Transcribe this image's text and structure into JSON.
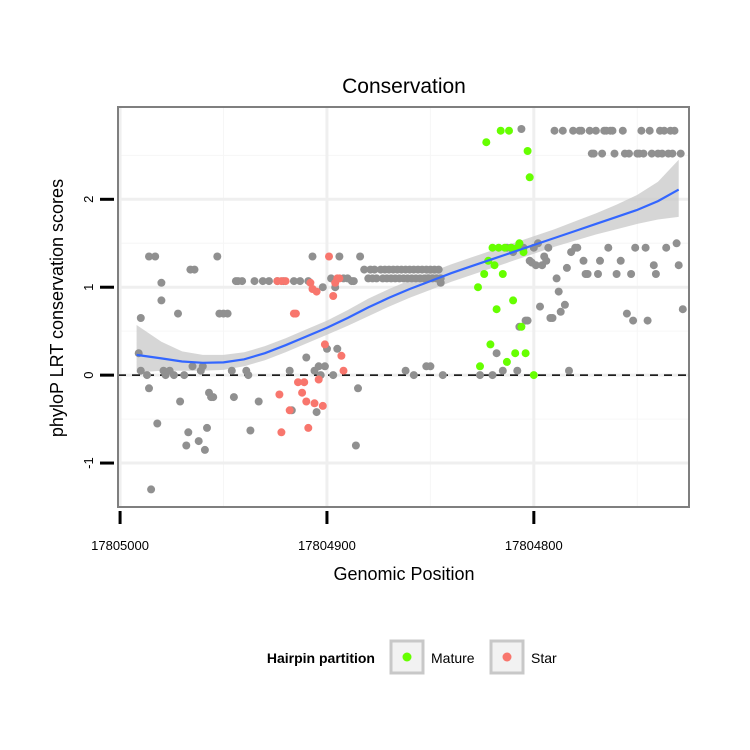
{
  "chart_data": {
    "type": "scatter",
    "title": "Conservation",
    "xlabel": "Genomic Position",
    "ylabel": "phyloP LRT conservation scores",
    "xlim": [
      17805001,
      17804725
    ],
    "x_reversed": true,
    "ylim": [
      -1.5,
      3.05
    ],
    "x_ticks": [
      17805000,
      17804900,
      17804800
    ],
    "x_tick_labels": [
      "17805000",
      "17804900",
      "17804800"
    ],
    "y_ticks": [
      -1,
      0,
      1,
      2
    ],
    "y_tick_labels": [
      "-1",
      "0",
      "1",
      "2"
    ],
    "x_minor_gridlines": [
      17804950,
      17804850,
      17804750
    ],
    "y_minor_gridlines": [
      -0.5,
      0.5,
      1.5,
      2.5
    ],
    "reference_line": {
      "y": 0,
      "style": "dashed"
    },
    "grid": true,
    "legend": {
      "title": "Hairpin partition",
      "position": "bottom",
      "entries": [
        {
          "label": "Mature",
          "color": "#66ff00"
        },
        {
          "label": "Star",
          "color": "#f8766d"
        }
      ]
    },
    "colors": {
      "other": "#909090",
      "mature": "#66ff00",
      "star": "#f8766d",
      "smooth_line": "#3366ff",
      "confidence_band": "#c8c8c8"
    },
    "series": [
      {
        "name": "Other",
        "color": "#909090",
        "points": [
          [
            17804991,
            0.25
          ],
          [
            17804990,
            0.65
          ],
          [
            17804990,
            0.05
          ],
          [
            17804987,
            0.0
          ],
          [
            17804986,
            1.35
          ],
          [
            17804986,
            -0.15
          ],
          [
            17804985,
            -1.3
          ],
          [
            17804983,
            1.35
          ],
          [
            17804982,
            -0.55
          ],
          [
            17804980,
            0.85
          ],
          [
            17804980,
            1.05
          ],
          [
            17804979,
            0.05
          ],
          [
            17804978,
            0.0
          ],
          [
            17804976,
            0.05
          ],
          [
            17804974,
            0.0
          ],
          [
            17804972,
            0.7
          ],
          [
            17804971,
            -0.3
          ],
          [
            17804969,
            0.0
          ],
          [
            17804968,
            -0.8
          ],
          [
            17804967,
            -0.65
          ],
          [
            17804966,
            1.2
          ],
          [
            17804965,
            0.1
          ],
          [
            17804964,
            1.2
          ],
          [
            17804962,
            -0.75
          ],
          [
            17804961,
            0.05
          ],
          [
            17804960,
            0.1
          ],
          [
            17804959,
            -0.85
          ],
          [
            17804958,
            -0.6
          ],
          [
            17804957,
            -0.2
          ],
          [
            17804956,
            -0.25
          ],
          [
            17804955,
            -0.25
          ],
          [
            17804953,
            1.35
          ],
          [
            17804952,
            0.7
          ],
          [
            17804950,
            0.7
          ],
          [
            17804948,
            0.7
          ],
          [
            17804946,
            0.05
          ],
          [
            17804945,
            -0.25
          ],
          [
            17804944,
            1.07
          ],
          [
            17804943,
            1.07
          ],
          [
            17804941,
            1.07
          ],
          [
            17804939,
            0.05
          ],
          [
            17804938,
            0.0
          ],
          [
            17804937,
            -0.63
          ],
          [
            17804935,
            1.07
          ],
          [
            17804933,
            -0.3
          ],
          [
            17804931,
            1.07
          ],
          [
            17804928,
            1.07
          ],
          [
            17804924,
            1.07
          ],
          [
            17804921,
            1.07
          ],
          [
            17804918,
            0.05
          ],
          [
            17804917,
            -0.4
          ],
          [
            17804916,
            1.07
          ],
          [
            17804913,
            1.07
          ],
          [
            17804910,
            0.2
          ],
          [
            17804909,
            1.07
          ],
          [
            17804907,
            1.35
          ],
          [
            17804906,
            0.05
          ],
          [
            17804905,
            -0.42
          ],
          [
            17804904,
            0.1
          ],
          [
            17804903,
            0.0
          ],
          [
            17804902,
            1.0
          ],
          [
            17804901,
            0.1
          ],
          [
            17804900,
            0.3
          ],
          [
            17804898,
            1.1
          ],
          [
            17804897,
            0.0
          ],
          [
            17804896,
            1.0
          ],
          [
            17804895,
            0.3
          ],
          [
            17804894,
            1.35
          ],
          [
            17804892,
            1.1
          ],
          [
            17804890,
            1.1
          ],
          [
            17804888,
            1.07
          ],
          [
            17804887,
            1.07
          ],
          [
            17804886,
            -0.8
          ],
          [
            17804885,
            -0.15
          ],
          [
            17804884,
            1.35
          ],
          [
            17804882,
            1.2
          ],
          [
            17804880,
            1.1
          ],
          [
            17804879,
            1.2
          ],
          [
            17804878,
            1.1
          ],
          [
            17804877,
            1.2
          ],
          [
            17804876,
            1.1
          ],
          [
            17804874,
            1.2
          ],
          [
            17804873,
            1.1
          ],
          [
            17804872,
            1.2
          ],
          [
            17804871,
            1.1
          ],
          [
            17804870,
            1.2
          ],
          [
            17804869,
            1.1
          ],
          [
            17804868,
            1.2
          ],
          [
            17804867,
            1.1
          ],
          [
            17804866,
            1.2
          ],
          [
            17804865,
            1.1
          ],
          [
            17804864,
            1.2
          ],
          [
            17804863,
            1.1
          ],
          [
            17804862,
            1.2
          ],
          [
            17804861,
            1.1
          ],
          [
            17804860,
            1.2
          ],
          [
            17804859,
            1.1
          ],
          [
            17804858,
            1.2
          ],
          [
            17804857,
            1.1
          ],
          [
            17804856,
            1.2
          ],
          [
            17804855,
            1.1
          ],
          [
            17804854,
            1.2
          ],
          [
            17804853,
            1.1
          ],
          [
            17804852,
            1.2
          ],
          [
            17804851,
            1.1
          ],
          [
            17804850,
            1.2
          ],
          [
            17804849,
            1.1
          ],
          [
            17804848,
            1.2
          ],
          [
            17804847,
            1.1
          ],
          [
            17804846,
            1.2
          ],
          [
            17804845,
            1.1
          ],
          [
            17804862,
            0.05
          ],
          [
            17804858,
            0.0
          ],
          [
            17804852,
            0.1
          ],
          [
            17804850,
            0.1
          ],
          [
            17804845,
            1.05
          ],
          [
            17804844,
            0.0
          ],
          [
            17804826,
            0.0
          ],
          [
            17804820,
            0.0
          ],
          [
            17804818,
            0.25
          ],
          [
            17804815,
            0.05
          ],
          [
            17804813,
            1.45
          ],
          [
            17804811,
            1.45
          ],
          [
            17804810,
            1.4
          ],
          [
            17804808,
            0.05
          ],
          [
            17804807,
            0.55
          ],
          [
            17804806,
            2.8
          ],
          [
            17804805,
            1.45
          ],
          [
            17804804,
            0.62
          ],
          [
            17804803,
            0.62
          ],
          [
            17804802,
            1.3
          ],
          [
            17804801,
            1.28
          ],
          [
            17804800,
            1.45
          ],
          [
            17804799,
            1.25
          ],
          [
            17804798,
            1.5
          ],
          [
            17804797,
            0.78
          ],
          [
            17804796,
            1.25
          ],
          [
            17804795,
            1.35
          ],
          [
            17804794,
            1.3
          ],
          [
            17804793,
            1.45
          ],
          [
            17804792,
            0.65
          ],
          [
            17804791,
            0.65
          ],
          [
            17804790,
            2.78
          ],
          [
            17804789,
            1.1
          ],
          [
            17804788,
            0.95
          ],
          [
            17804787,
            0.72
          ],
          [
            17804786,
            2.78
          ],
          [
            17804785,
            0.8
          ],
          [
            17804784,
            1.22
          ],
          [
            17804783,
            0.05
          ],
          [
            17804782,
            1.4
          ],
          [
            17804781,
            2.78
          ],
          [
            17804780,
            1.45
          ],
          [
            17804779,
            1.45
          ],
          [
            17804778,
            2.78
          ],
          [
            17804777,
            2.78
          ],
          [
            17804776,
            1.3
          ],
          [
            17804775,
            1.15
          ],
          [
            17804774,
            1.15
          ],
          [
            17804773,
            2.78
          ],
          [
            17804772,
            2.52
          ],
          [
            17804771,
            2.52
          ],
          [
            17804770,
            2.78
          ],
          [
            17804769,
            1.15
          ],
          [
            17804768,
            1.3
          ],
          [
            17804767,
            2.52
          ],
          [
            17804766,
            2.78
          ],
          [
            17804765,
            2.78
          ],
          [
            17804764,
            1.45
          ],
          [
            17804763,
            2.78
          ],
          [
            17804762,
            2.78
          ],
          [
            17804761,
            2.52
          ],
          [
            17804760,
            1.15
          ],
          [
            17804758,
            1.3
          ],
          [
            17804757,
            2.78
          ],
          [
            17804756,
            2.52
          ],
          [
            17804755,
            0.7
          ],
          [
            17804754,
            2.52
          ],
          [
            17804753,
            1.15
          ],
          [
            17804752,
            0.62
          ],
          [
            17804751,
            1.45
          ],
          [
            17804750,
            2.52
          ],
          [
            17804749,
            2.52
          ],
          [
            17804748,
            2.78
          ],
          [
            17804747,
            2.52
          ],
          [
            17804746,
            1.45
          ],
          [
            17804745,
            0.62
          ],
          [
            17804744,
            2.78
          ],
          [
            17804743,
            2.52
          ],
          [
            17804742,
            1.25
          ],
          [
            17804741,
            1.15
          ],
          [
            17804740,
            2.52
          ],
          [
            17804739,
            2.78
          ],
          [
            17804738,
            2.52
          ],
          [
            17804737,
            2.78
          ],
          [
            17804736,
            1.45
          ],
          [
            17804735,
            2.52
          ],
          [
            17804734,
            2.78
          ],
          [
            17804733,
            2.52
          ],
          [
            17804732,
            2.78
          ],
          [
            17804731,
            1.5
          ],
          [
            17804730,
            1.25
          ],
          [
            17804729,
            2.52
          ],
          [
            17804728,
            0.75
          ]
        ]
      },
      {
        "name": "Mature",
        "color": "#66ff00",
        "points": [
          [
            17804826,
            0.1
          ],
          [
            17804827,
            1.0
          ],
          [
            17804824,
            1.15
          ],
          [
            17804823,
            2.65
          ],
          [
            17804822,
            1.3
          ],
          [
            17804821,
            0.35
          ],
          [
            17804820,
            1.45
          ],
          [
            17804819,
            1.25
          ],
          [
            17804818,
            0.75
          ],
          [
            17804817,
            1.45
          ],
          [
            17804816,
            2.78
          ],
          [
            17804815,
            1.15
          ],
          [
            17804814,
            1.45
          ],
          [
            17804813,
            0.15
          ],
          [
            17804812,
            2.78
          ],
          [
            17804811,
            1.45
          ],
          [
            17804810,
            0.85
          ],
          [
            17804809,
            0.25
          ],
          [
            17804808,
            1.45
          ],
          [
            17804807,
            1.5
          ],
          [
            17804806,
            0.55
          ],
          [
            17804805,
            1.4
          ],
          [
            17804804,
            0.25
          ],
          [
            17804803,
            2.55
          ],
          [
            17804802,
            2.25
          ],
          [
            17804800,
            0.0
          ]
        ]
      },
      {
        "name": "Star",
        "color": "#f8766d",
        "points": [
          [
            17804924,
            1.07
          ],
          [
            17804922,
            1.07
          ],
          [
            17804920,
            1.07
          ],
          [
            17804923,
            -0.22
          ],
          [
            17804922,
            -0.65
          ],
          [
            17804918,
            -0.4
          ],
          [
            17804916,
            0.7
          ],
          [
            17804915,
            0.7
          ],
          [
            17804914,
            -0.08
          ],
          [
            17804912,
            -0.2
          ],
          [
            17804911,
            -0.08
          ],
          [
            17804910,
            -0.3
          ],
          [
            17804909,
            -0.6
          ],
          [
            17804908,
            1.05
          ],
          [
            17804907,
            0.98
          ],
          [
            17804906,
            -0.32
          ],
          [
            17804905,
            0.95
          ],
          [
            17804904,
            -0.05
          ],
          [
            17804902,
            -0.35
          ],
          [
            17804901,
            0.35
          ],
          [
            17804899,
            1.35
          ],
          [
            17804897,
            0.9
          ],
          [
            17804896,
            1.05
          ],
          [
            17804895,
            1.1
          ],
          [
            17804894,
            1.1
          ],
          [
            17804893,
            0.22
          ],
          [
            17804892,
            0.05
          ]
        ]
      }
    ],
    "smooth": {
      "method": "loess",
      "x": [
        17804992,
        17804980,
        17804970,
        17804960,
        17804950,
        17804940,
        17804930,
        17804920,
        17804910,
        17804900,
        17804890,
        17804880,
        17804870,
        17804860,
        17804850,
        17804840,
        17804830,
        17804820,
        17804810,
        17804800,
        17804790,
        17804780,
        17804770,
        17804760,
        17804750,
        17804740,
        17804730
      ],
      "y": [
        0.23,
        0.19,
        0.155,
        0.14,
        0.145,
        0.18,
        0.25,
        0.34,
        0.44,
        0.54,
        0.65,
        0.77,
        0.88,
        0.98,
        1.07,
        1.16,
        1.24,
        1.32,
        1.4,
        1.48,
        1.56,
        1.64,
        1.72,
        1.8,
        1.88,
        1.98,
        2.11
      ],
      "lower": [
        0.03,
        0.05,
        0.05,
        0.05,
        0.06,
        0.1,
        0.17,
        0.26,
        0.36,
        0.46,
        0.56,
        0.67,
        0.78,
        0.88,
        0.97,
        1.06,
        1.14,
        1.22,
        1.3,
        1.38,
        1.46,
        1.53,
        1.6,
        1.66,
        1.72,
        1.77,
        1.8
      ],
      "upper": [
        0.57,
        0.38,
        0.27,
        0.23,
        0.23,
        0.26,
        0.33,
        0.42,
        0.52,
        0.62,
        0.74,
        0.87,
        0.98,
        1.08,
        1.17,
        1.26,
        1.34,
        1.42,
        1.5,
        1.58,
        1.66,
        1.75,
        1.84,
        1.94,
        2.05,
        2.2,
        2.45
      ]
    }
  }
}
